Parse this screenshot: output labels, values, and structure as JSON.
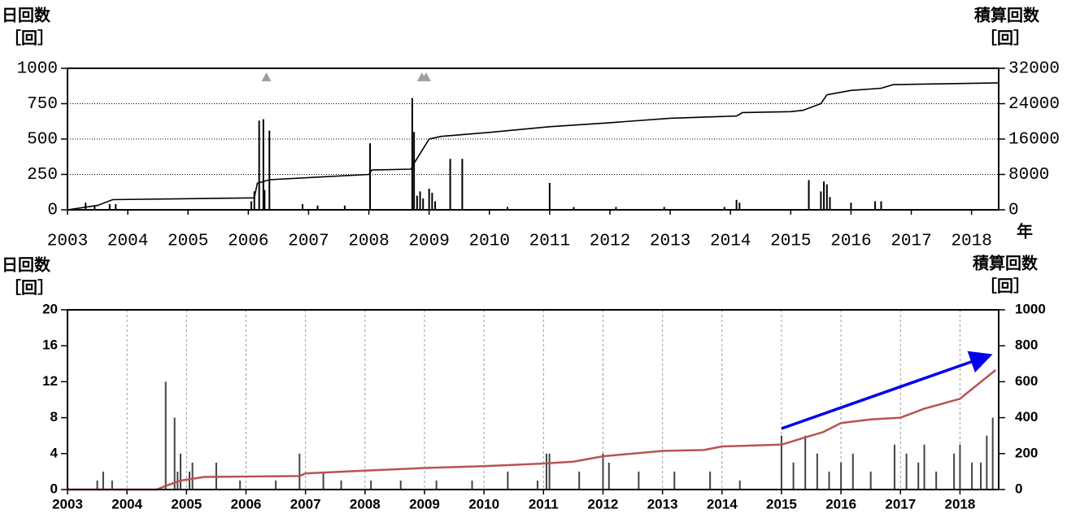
{
  "chart_data": [
    {
      "type": "bar",
      "x_label": "年",
      "y_label": "日回数",
      "y_unit": "［回］",
      "y2_label": "積算回数",
      "y2_unit": "［回］",
      "xlim": [
        2003,
        2018.45
      ],
      "xticks": [
        2003,
        2004,
        2005,
        2006,
        2007,
        2008,
        2009,
        2010,
        2011,
        2012,
        2013,
        2014,
        2015,
        2016,
        2017,
        2018
      ],
      "ylim": [
        0,
        1000
      ],
      "yticks": [
        0,
        250,
        500,
        750,
        1000
      ],
      "y2lim": [
        0,
        32000
      ],
      "y2ticks": [
        0,
        8000,
        16000,
        24000,
        32000
      ],
      "grid": "y",
      "event_markers": [
        2006.3,
        2008.88,
        2008.95
      ],
      "event_color": "#a0a0a0",
      "series": [
        {
          "color": "#000000",
          "x": [
            2003.3,
            2003.45,
            2003.7,
            2003.8,
            2006.05,
            2006.1,
            2006.18,
            2006.25,
            2006.27,
            2006.35,
            2006.9,
            2007.15,
            2007.6,
            2008.02,
            2008.72,
            2008.75,
            2008.8,
            2008.85,
            2008.9,
            2009.0,
            2009.05,
            2009.1,
            2009.35,
            2009.55,
            2010.3,
            2011.0,
            2011.4,
            2012.1,
            2012.9,
            2013.9,
            2014.1,
            2014.15,
            2015.3,
            2015.5,
            2015.55,
            2015.6,
            2015.65,
            2016.0,
            2016.4,
            2016.5
          ],
          "values": [
            50,
            30,
            40,
            40,
            60,
            130,
            630,
            640,
            140,
            560,
            40,
            30,
            30,
            470,
            790,
            550,
            100,
            130,
            80,
            150,
            120,
            60,
            360,
            360,
            20,
            190,
            20,
            20,
            20,
            20,
            70,
            50,
            210,
            130,
            200,
            180,
            90,
            50,
            60,
            60
          ]
        },
        {
          "axis": "y2",
          "color": "#000000",
          "x": [
            2003,
            2003.5,
            2003.75,
            2006.1,
            2006.15,
            2006.35,
            2008.0,
            2008.05,
            2008.7,
            2008.75,
            2009.0,
            2009.2,
            2010,
            2011,
            2012,
            2013,
            2014.1,
            2014.2,
            2015,
            2015.2,
            2015.5,
            2015.6,
            2016,
            2016.5,
            2016.7,
            2018.45
          ],
          "values": [
            0,
            1000,
            2300,
            2700,
            6000,
            6800,
            8000,
            9000,
            9200,
            10500,
            16000,
            16600,
            17500,
            18800,
            19700,
            20700,
            21200,
            22000,
            22200,
            22500,
            24000,
            26000,
            27000,
            27500,
            28300,
            28700
          ]
        }
      ]
    },
    {
      "type": "bar",
      "y_label": "日回数",
      "y_unit": "［回］",
      "y2_label": "積算回数",
      "y2_unit": "［回］",
      "xlim": [
        2003,
        2018.65
      ],
      "xticks": [
        2003,
        2004,
        2005,
        2006,
        2007,
        2008,
        2009,
        2010,
        2011,
        2012,
        2013,
        2014,
        2015,
        2016,
        2017,
        2018
      ],
      "ylim": [
        0,
        20
      ],
      "yticks": [
        0,
        4,
        8,
        12,
        16,
        20
      ],
      "y2lim": [
        0,
        1000
      ],
      "y2ticks": [
        0,
        200,
        400,
        600,
        800,
        1000
      ],
      "grid": "x",
      "series": [
        {
          "color": "#444444",
          "x": [
            2003.5,
            2003.6,
            2003.75,
            2004.65,
            2004.8,
            2004.85,
            2004.9,
            2005.05,
            2005.1,
            2005.5,
            2005.9,
            2006.5,
            2006.9,
            2007.3,
            2007.6,
            2008.1,
            2008.6,
            2009.2,
            2009.8,
            2010.4,
            2010.9,
            2011.05,
            2011.1,
            2011.6,
            2012.0,
            2012.1,
            2012.6,
            2013.2,
            2013.8,
            2014.3,
            2015.0,
            2015.2,
            2015.4,
            2015.6,
            2015.8,
            2016.0,
            2016.2,
            2016.5,
            2016.9,
            2017.1,
            2017.3,
            2017.4,
            2017.6,
            2017.9,
            2018.0,
            2018.2,
            2018.35,
            2018.45,
            2018.55
          ],
          "values": [
            1,
            2,
            1,
            12,
            8,
            2,
            4,
            2,
            3,
            3,
            1,
            1,
            4,
            2,
            1,
            1,
            1,
            1,
            1,
            2,
            1,
            4,
            4,
            2,
            4,
            3,
            2,
            2,
            2,
            1,
            6,
            3,
            6,
            4,
            2,
            3,
            4,
            2,
            5,
            4,
            3,
            5,
            2,
            4,
            5,
            3,
            3,
            6,
            8
          ]
        },
        {
          "axis": "y2",
          "color": "#b85450",
          "x": [
            2003,
            2004.5,
            2004.65,
            2004.9,
            2005.3,
            2006.9,
            2007.0,
            2008,
            2009,
            2010,
            2011,
            2011.5,
            2012,
            2013,
            2013.7,
            2014,
            2015,
            2015.3,
            2015.7,
            2016,
            2016.5,
            2017,
            2017.4,
            2018,
            2018.6
          ],
          "values": [
            0,
            0,
            20,
            50,
            70,
            75,
            90,
            105,
            120,
            130,
            145,
            155,
            185,
            215,
            220,
            240,
            250,
            280,
            320,
            370,
            390,
            400,
            450,
            505,
            665
          ]
        }
      ]
    }
  ]
}
